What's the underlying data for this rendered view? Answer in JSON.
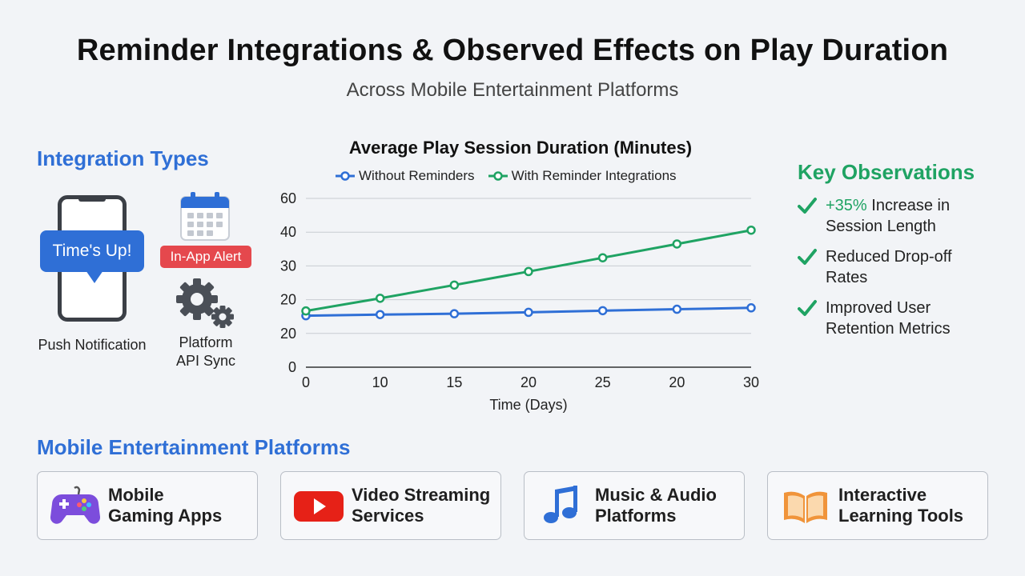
{
  "title": "Reminder Integrations & Observed Effects on Play Duration",
  "subtitle": "Across Mobile Entertainment Platforms",
  "integration": {
    "heading": "Integration Types",
    "push_bubble": "Time's Up!",
    "push_caption": "Push Notification",
    "alert_label": "In-App Alert",
    "api_caption_1": "Platform",
    "api_caption_2": "API Sync"
  },
  "chart_data": {
    "type": "line",
    "title": "Average Play Session Duration (Minutes)",
    "xlabel": "Time (Days)",
    "ylabel": "",
    "x_tick_labels": [
      "0",
      "10",
      "15",
      "20",
      "25",
      "20",
      "30"
    ],
    "y_tick_labels": [
      "0",
      "20",
      "20",
      "30",
      "40",
      "60"
    ],
    "ylim": [
      0,
      60
    ],
    "grid": true,
    "legend_position": "top",
    "series": [
      {
        "name": "Without Reminders",
        "color": "#2f6fd6",
        "values": [
          18.3,
          18.7,
          19,
          19.5,
          20.1,
          20.6,
          21.1
        ]
      },
      {
        "name": "With Reminder Integrations",
        "color": "#1fa363",
        "values": [
          20.0,
          24.5,
          29.2,
          34.0,
          38.9,
          43.8,
          48.7
        ]
      }
    ]
  },
  "observations": {
    "heading": "Key Observations",
    "items": [
      {
        "highlight": "+35%",
        "line1": " Increase in",
        "line2": "Session Length"
      },
      {
        "highlight": "",
        "line1": "Reduced Drop-off",
        "line2": "Rates"
      },
      {
        "highlight": "",
        "line1": "Improved User",
        "line2": "Retention Metrics"
      }
    ]
  },
  "platforms": {
    "heading": "Mobile Entertainment Platforms",
    "cards": [
      {
        "line1": "Mobile",
        "line2": "Gaming Apps",
        "icon": "gamepad-icon"
      },
      {
        "line1": "Video Streaming",
        "line2": "Services",
        "icon": "video-play-icon"
      },
      {
        "line1": "Music & Audio",
        "line2": "Platforms",
        "icon": "music-note-icon"
      },
      {
        "line1": "Interactive",
        "line2": "Learning Tools",
        "icon": "book-icon"
      }
    ]
  },
  "colors": {
    "blue": "#2f6fd6",
    "green": "#1fa363",
    "red": "#e5484d"
  }
}
